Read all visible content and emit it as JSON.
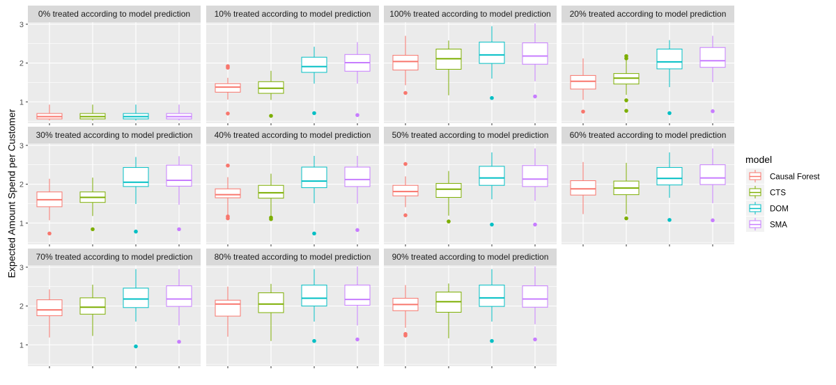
{
  "chart_data": {
    "type": "boxplot",
    "ylabel": "Expected Amount Spend per Customer",
    "y_ticks": [
      1,
      2,
      3
    ],
    "ylim": [
      0.45,
      3.05
    ],
    "grid": true,
    "legend": {
      "title": "model",
      "placement": "right",
      "entries": [
        {
          "name": "Causal Forest",
          "color": "#F8766D"
        },
        {
          "name": "CTS",
          "color": "#7CAE00"
        },
        {
          "name": "DOM",
          "color": "#00BFC4"
        },
        {
          "name": "SMA",
          "color": "#C77CFF"
        }
      ]
    },
    "facets": [
      {
        "title": "0% treated according to model prediction",
        "boxes": [
          {
            "series": "Causal Forest",
            "q1": 0.56,
            "median": 0.62,
            "q3": 0.7,
            "whisker_low": 0.52,
            "whisker_high": 0.93,
            "outliers": []
          },
          {
            "series": "CTS",
            "q1": 0.56,
            "median": 0.62,
            "q3": 0.7,
            "whisker_low": 0.52,
            "whisker_high": 0.93,
            "outliers": []
          },
          {
            "series": "DOM",
            "q1": 0.56,
            "median": 0.62,
            "q3": 0.7,
            "whisker_low": 0.52,
            "whisker_high": 0.93,
            "outliers": []
          },
          {
            "series": "SMA",
            "q1": 0.56,
            "median": 0.62,
            "q3": 0.7,
            "whisker_low": 0.52,
            "whisker_high": 0.93,
            "outliers": []
          }
        ]
      },
      {
        "title": "10% treated according to model prediction",
        "boxes": [
          {
            "series": "Causal Forest",
            "q1": 1.25,
            "median": 1.38,
            "q3": 1.47,
            "whisker_low": 1.06,
            "whisker_high": 1.62,
            "outliers": [
              0.7,
              1.88,
              1.92
            ]
          },
          {
            "series": "CTS",
            "q1": 1.22,
            "median": 1.35,
            "q3": 1.52,
            "whisker_low": 1.05,
            "whisker_high": 1.8,
            "outliers": [
              0.64
            ]
          },
          {
            "series": "DOM",
            "q1": 1.76,
            "median": 1.91,
            "q3": 2.15,
            "whisker_low": 1.47,
            "whisker_high": 2.42,
            "outliers": [
              0.71
            ]
          },
          {
            "series": "SMA",
            "q1": 1.79,
            "median": 2.01,
            "q3": 2.22,
            "whisker_low": 1.47,
            "whisker_high": 2.54,
            "outliers": [
              0.66
            ]
          }
        ]
      },
      {
        "title": "100% treated according to model prediction",
        "boxes": [
          {
            "series": "Causal Forest",
            "q1": 1.82,
            "median": 2.04,
            "q3": 2.2,
            "whisker_low": 1.43,
            "whisker_high": 2.7,
            "outliers": [
              1.23
            ]
          },
          {
            "series": "CTS",
            "q1": 1.84,
            "median": 2.11,
            "q3": 2.36,
            "whisker_low": 1.17,
            "whisker_high": 2.58,
            "outliers": []
          },
          {
            "series": "DOM",
            "q1": 1.99,
            "median": 2.21,
            "q3": 2.54,
            "whisker_low": 1.6,
            "whisker_high": 2.95,
            "outliers": [
              1.1
            ]
          },
          {
            "series": "SMA",
            "q1": 1.97,
            "median": 2.18,
            "q3": 2.52,
            "whisker_low": 1.53,
            "whisker_high": 3.02,
            "outliers": [
              1.14
            ]
          }
        ]
      },
      {
        "title": "20% treated according to model prediction",
        "boxes": [
          {
            "series": "Causal Forest",
            "q1": 1.33,
            "median": 1.53,
            "q3": 1.68,
            "whisker_low": 1.05,
            "whisker_high": 2.12,
            "outliers": [
              0.75
            ]
          },
          {
            "series": "CTS",
            "q1": 1.46,
            "median": 1.61,
            "q3": 1.73,
            "whisker_low": 1.18,
            "whisker_high": 2.07,
            "outliers": [
              0.77,
              1.04,
              2.12,
              2.18
            ]
          },
          {
            "series": "DOM",
            "q1": 1.85,
            "median": 2.03,
            "q3": 2.36,
            "whisker_low": 1.38,
            "whisker_high": 2.59,
            "outliers": [
              0.71
            ]
          },
          {
            "series": "SMA",
            "q1": 1.89,
            "median": 2.06,
            "q3": 2.4,
            "whisker_low": 1.51,
            "whisker_high": 2.7,
            "outliers": [
              0.76
            ]
          }
        ]
      },
      {
        "title": "30% treated according to model prediction",
        "boxes": [
          {
            "series": "Causal Forest",
            "q1": 1.42,
            "median": 1.6,
            "q3": 1.8,
            "whisker_low": 1.07,
            "whisker_high": 2.14,
            "outliers": [
              0.73
            ]
          },
          {
            "series": "CTS",
            "q1": 1.53,
            "median": 1.66,
            "q3": 1.8,
            "whisker_low": 1.18,
            "whisker_high": 2.17,
            "outliers": [
              0.84
            ]
          },
          {
            "series": "DOM",
            "q1": 1.94,
            "median": 2.05,
            "q3": 2.43,
            "whisker_low": 1.49,
            "whisker_high": 2.7,
            "outliers": [
              0.78
            ]
          },
          {
            "series": "SMA",
            "q1": 1.95,
            "median": 2.1,
            "q3": 2.49,
            "whisker_low": 1.47,
            "whisker_high": 2.72,
            "outliers": [
              0.84
            ]
          }
        ]
      },
      {
        "title": "40% treated according to model prediction",
        "boxes": [
          {
            "series": "Causal Forest",
            "q1": 1.65,
            "median": 1.73,
            "q3": 1.88,
            "whisker_low": 1.22,
            "whisker_high": 2.18,
            "outliers": [
              1.12,
              1.17,
              2.48
            ]
          },
          {
            "series": "CTS",
            "q1": 1.64,
            "median": 1.78,
            "q3": 1.97,
            "whisker_low": 1.18,
            "whisker_high": 2.27,
            "outliers": [
              1.1,
              1.14
            ]
          },
          {
            "series": "DOM",
            "q1": 1.91,
            "median": 2.08,
            "q3": 2.44,
            "whisker_low": 1.51,
            "whisker_high": 2.73,
            "outliers": [
              0.73
            ]
          },
          {
            "series": "SMA",
            "q1": 1.94,
            "median": 2.12,
            "q3": 2.44,
            "whisker_low": 1.5,
            "whisker_high": 2.73,
            "outliers": [
              0.82
            ]
          }
        ]
      },
      {
        "title": "50% treated according to model prediction",
        "boxes": [
          {
            "series": "Causal Forest",
            "q1": 1.7,
            "median": 1.81,
            "q3": 1.97,
            "whisker_low": 1.41,
            "whisker_high": 2.2,
            "outliers": [
              1.2,
              2.52
            ]
          },
          {
            "series": "CTS",
            "q1": 1.66,
            "median": 1.87,
            "q3": 2.02,
            "whisker_low": 1.19,
            "whisker_high": 2.34,
            "outliers": [
              1.04
            ]
          },
          {
            "series": "DOM",
            "q1": 1.97,
            "median": 2.16,
            "q3": 2.46,
            "whisker_low": 1.61,
            "whisker_high": 2.82,
            "outliers": [
              0.96
            ]
          },
          {
            "series": "SMA",
            "q1": 1.94,
            "median": 2.13,
            "q3": 2.48,
            "whisker_low": 1.57,
            "whisker_high": 2.92,
            "outliers": [
              0.96
            ]
          }
        ]
      },
      {
        "title": "60% treated according to model prediction",
        "boxes": [
          {
            "series": "Causal Forest",
            "q1": 1.72,
            "median": 1.88,
            "q3": 2.09,
            "whisker_low": 1.23,
            "whisker_high": 2.57,
            "outliers": []
          },
          {
            "series": "CTS",
            "q1": 1.73,
            "median": 1.9,
            "q3": 2.08,
            "whisker_low": 1.23,
            "whisker_high": 2.55,
            "outliers": [
              1.12
            ]
          },
          {
            "series": "DOM",
            "q1": 1.98,
            "median": 2.15,
            "q3": 2.43,
            "whisker_low": 1.65,
            "whisker_high": 2.82,
            "outliers": [
              1.08
            ]
          },
          {
            "series": "SMA",
            "q1": 1.99,
            "median": 2.16,
            "q3": 2.5,
            "whisker_low": 1.51,
            "whisker_high": 2.92,
            "outliers": [
              1.07
            ]
          }
        ]
      },
      {
        "title": "70% treated according to model prediction",
        "boxes": [
          {
            "series": "Causal Forest",
            "q1": 1.75,
            "median": 1.9,
            "q3": 2.16,
            "whisker_low": 1.19,
            "whisker_high": 2.43,
            "outliers": []
          },
          {
            "series": "CTS",
            "q1": 1.79,
            "median": 1.97,
            "q3": 2.21,
            "whisker_low": 1.23,
            "whisker_high": 2.55,
            "outliers": []
          },
          {
            "series": "DOM",
            "q1": 1.96,
            "median": 2.18,
            "q3": 2.46,
            "whisker_low": 1.6,
            "whisker_high": 2.95,
            "outliers": [
              0.96
            ]
          },
          {
            "series": "SMA",
            "q1": 1.99,
            "median": 2.18,
            "q3": 2.52,
            "whisker_low": 1.5,
            "whisker_high": 2.95,
            "outliers": [
              1.08
            ]
          }
        ]
      },
      {
        "title": "80% treated according to model prediction",
        "boxes": [
          {
            "series": "Causal Forest",
            "q1": 1.74,
            "median": 2.05,
            "q3": 2.15,
            "whisker_low": 1.21,
            "whisker_high": 2.5,
            "outliers": []
          },
          {
            "series": "CTS",
            "q1": 1.83,
            "median": 2.05,
            "q3": 2.34,
            "whisker_low": 1.1,
            "whisker_high": 2.57,
            "outliers": []
          },
          {
            "series": "DOM",
            "q1": 2.0,
            "median": 2.2,
            "q3": 2.54,
            "whisker_low": 1.6,
            "whisker_high": 2.95,
            "outliers": [
              1.1
            ]
          },
          {
            "series": "SMA",
            "q1": 2.02,
            "median": 2.17,
            "q3": 2.54,
            "whisker_low": 1.5,
            "whisker_high": 3.02,
            "outliers": [
              1.14
            ]
          }
        ]
      },
      {
        "title": "90% treated according to model prediction",
        "boxes": [
          {
            "series": "Causal Forest",
            "q1": 1.88,
            "median": 2.04,
            "q3": 2.2,
            "whisker_low": 1.44,
            "whisker_high": 2.54,
            "outliers": [
              1.24,
              1.28
            ]
          },
          {
            "series": "CTS",
            "q1": 1.84,
            "median": 2.11,
            "q3": 2.36,
            "whisker_low": 1.17,
            "whisker_high": 2.58,
            "outliers": []
          },
          {
            "series": "DOM",
            "q1": 1.99,
            "median": 2.21,
            "q3": 2.54,
            "whisker_low": 1.6,
            "whisker_high": 2.95,
            "outliers": [
              1.1
            ]
          },
          {
            "series": "SMA",
            "q1": 1.97,
            "median": 2.18,
            "q3": 2.52,
            "whisker_low": 1.53,
            "whisker_high": 3.02,
            "outliers": [
              1.14
            ]
          }
        ]
      }
    ]
  }
}
